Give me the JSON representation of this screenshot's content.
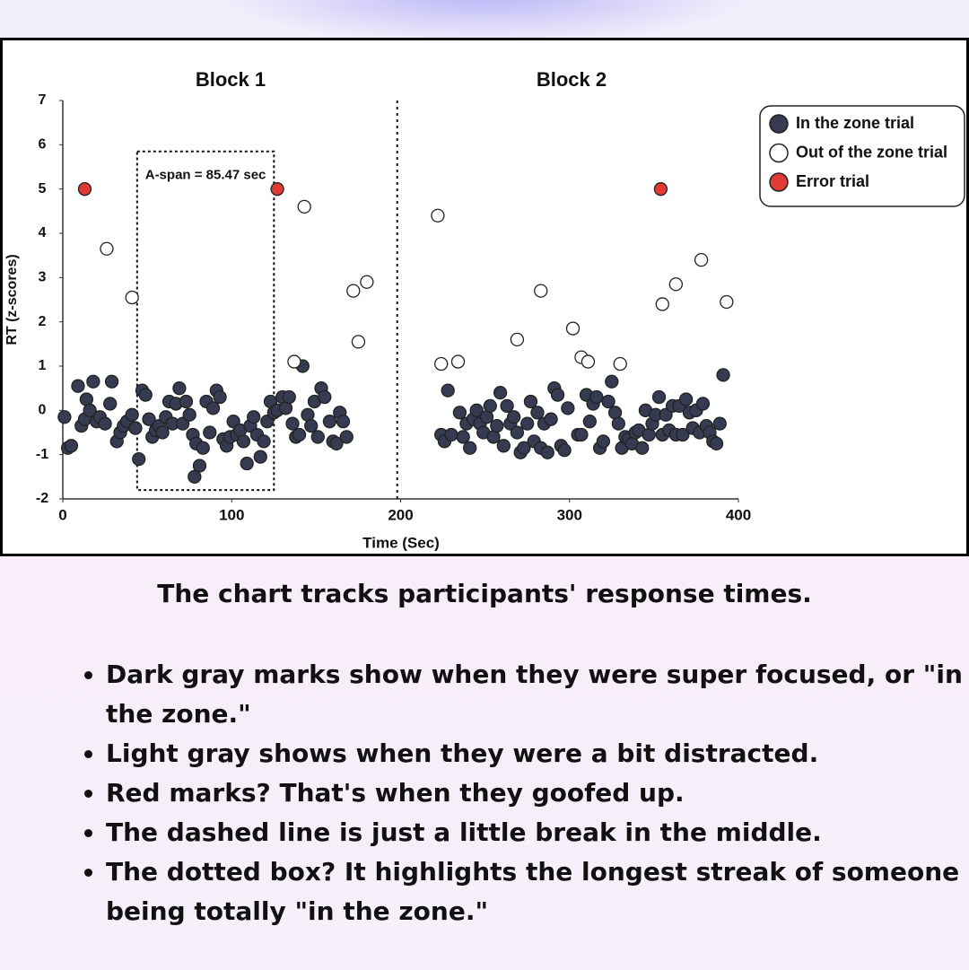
{
  "chart_data": {
    "type": "scatter",
    "block_labels": [
      "Block 1",
      "Block 2"
    ],
    "x_label": "Time (Sec)",
    "y_label": "RT (z-scores)",
    "xlim": [
      0,
      400
    ],
    "xticks": [
      0,
      100,
      200,
      300,
      400
    ],
    "ylim": [
      -2,
      7
    ],
    "yticks": [
      -2,
      -1,
      0,
      1,
      2,
      3,
      4,
      5,
      6,
      7
    ],
    "grid": false,
    "legend": "upper right",
    "break_line_x": 198,
    "a_span_box": {
      "label": "A-span = 85.47 sec",
      "x": [
        44,
        125
      ],
      "y": [
        -1.8,
        5.85
      ]
    },
    "series": [
      {
        "name": "In the zone trial",
        "color": "#363b52",
        "x": [
          1,
          3,
          5,
          9,
          11,
          13,
          14,
          16,
          18,
          20,
          22,
          25,
          28,
          29,
          32,
          34,
          36,
          38,
          41,
          43,
          45,
          47,
          49,
          51,
          53,
          55,
          57,
          59,
          61,
          63,
          65,
          67,
          69,
          71,
          73,
          75,
          77,
          79,
          81,
          83,
          85,
          87,
          89,
          91,
          93,
          95,
          97,
          99,
          101,
          103,
          105,
          107,
          109,
          111,
          113,
          115,
          117,
          119,
          121,
          123,
          125,
          127,
          130,
          132,
          134,
          136,
          138,
          140,
          142,
          145,
          147,
          149,
          151,
          153,
          155,
          158,
          160,
          162,
          164,
          166,
          168,
          78,
          224,
          226,
          228,
          230,
          235,
          237,
          239,
          241,
          243,
          245,
          247,
          249,
          251,
          253,
          255,
          257,
          259,
          261,
          263,
          265,
          267,
          269,
          271,
          273,
          275,
          277,
          279,
          281,
          283,
          285,
          287,
          289,
          291,
          293,
          295,
          297,
          299,
          305,
          307,
          310,
          312,
          314,
          316,
          318,
          320,
          323,
          325,
          327,
          329,
          331,
          333,
          335,
          337,
          339,
          341,
          343,
          345,
          347,
          349,
          351,
          353,
          355,
          357,
          359,
          361,
          363,
          365,
          367,
          369,
          371,
          373,
          375,
          377,
          379,
          381,
          383,
          385,
          387,
          389,
          391
        ],
        "values": [
          -0.15,
          -0.85,
          -0.8,
          0.55,
          -0.35,
          -0.2,
          0.25,
          0,
          0.65,
          -0.25,
          -0.15,
          -0.3,
          0.15,
          0.65,
          -0.7,
          -0.5,
          -0.35,
          -0.25,
          -0.1,
          -0.4,
          -1.1,
          0.45,
          0.35,
          -0.2,
          -0.6,
          -0.45,
          -0.35,
          -0.5,
          -0.15,
          0.2,
          -0.3,
          0.15,
          0.5,
          -0.3,
          0.2,
          -0.1,
          -0.55,
          -0.75,
          -1.25,
          -0.85,
          0.2,
          -0.5,
          0.05,
          0.45,
          0.3,
          -0.65,
          -0.8,
          -0.6,
          -0.25,
          -0.55,
          -0.45,
          -0.7,
          -1.2,
          -0.35,
          -0.15,
          -0.55,
          -1.05,
          -0.7,
          -0.25,
          0.2,
          -0.05,
          0,
          0.3,
          0.05,
          0.3,
          -0.3,
          -0.6,
          -0.55,
          1,
          -0.1,
          -0.35,
          0.2,
          -0.6,
          0.5,
          0.3,
          -0.25,
          -0.7,
          -0.75,
          -0.05,
          -0.25,
          -0.6,
          -1.5,
          -0.55,
          -0.7,
          0.45,
          -0.55,
          -0.05,
          -0.6,
          -0.3,
          -0.85,
          -0.2,
          0,
          -0.3,
          -0.5,
          -0.15,
          0.1,
          -0.6,
          -0.35,
          0.4,
          -0.8,
          0.1,
          -0.3,
          -0.15,
          -0.5,
          -0.95,
          -0.85,
          -0.3,
          0.2,
          -0.7,
          -0.05,
          -0.85,
          -0.3,
          -0.95,
          -0.2,
          0.5,
          0.35,
          -0.8,
          -0.9,
          0.05,
          -0.55,
          -0.55,
          0.35,
          -0.25,
          0.15,
          0.3,
          -0.85,
          -0.7,
          0.2,
          0.65,
          -0.05,
          -0.3,
          -0.85,
          -0.6,
          -0.65,
          -0.75,
          -0.5,
          -0.45,
          -0.85,
          0,
          -0.55,
          -0.3,
          -0.1,
          0.3,
          -0.55,
          -0.1,
          -0.45,
          0.1,
          -0.55,
          0.1,
          -0.55,
          0.25,
          -0.05,
          -0.4,
          0,
          -0.5,
          0.15,
          -0.35,
          -0.5,
          -0.7,
          -0.75,
          -0.3,
          0.8
        ]
      },
      {
        "name": "Out of the zone trial",
        "color": "#ffffff",
        "x": [
          26,
          41,
          143,
          137,
          172,
          175,
          180,
          222,
          224,
          234,
          269,
          283,
          302,
          307,
          311,
          330,
          355,
          363,
          378,
          393
        ],
        "values": [
          3.65,
          2.55,
          4.6,
          1.1,
          2.7,
          1.55,
          2.9,
          4.4,
          1.05,
          1.1,
          1.6,
          2.7,
          1.85,
          1.2,
          1.1,
          1.05,
          2.4,
          2.85,
          3.4,
          2.45
        ]
      },
      {
        "name": "Error trial",
        "color": "#e03a35",
        "x": [
          13,
          127,
          354
        ],
        "values": [
          5,
          5,
          5
        ]
      }
    ]
  },
  "caption": "The chart tracks participants' response times.",
  "bullets": [
    "Dark gray marks show when they were super focused, or \"in the zone.\"",
    "Light gray shows when they were a bit distracted.",
    "Red marks? That's when they goofed up.",
    "The dashed line is just a little break in the middle.",
    "The dotted box? It highlights the longest streak of someone being totally \"in the zone.\""
  ]
}
